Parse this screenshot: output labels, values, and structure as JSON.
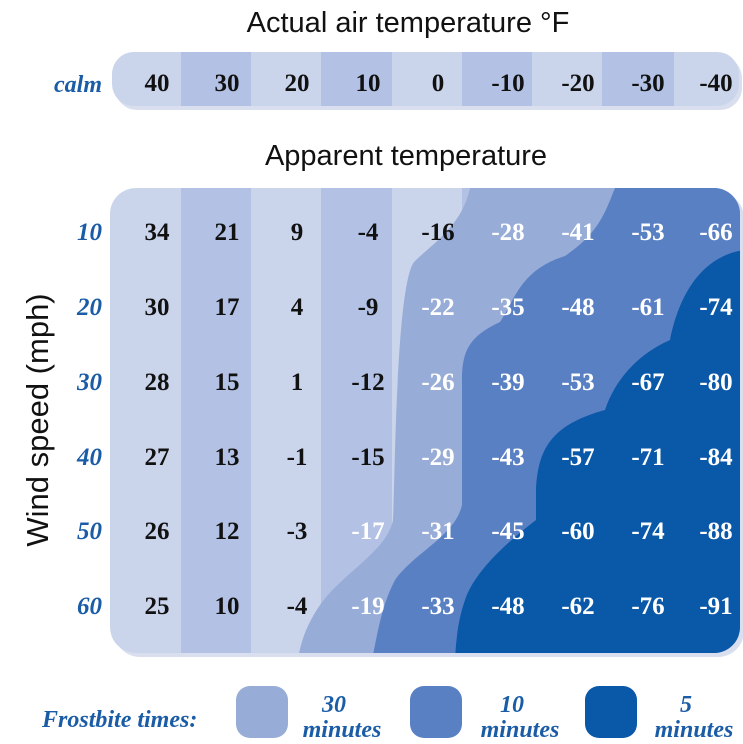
{
  "title": "Actual air temperature °F",
  "subtitle": "Apparent temperature",
  "ylabel": "Wind speed (mph)",
  "calm_label": "calm",
  "legend": {
    "title": "Frostbite times:",
    "items": [
      {
        "number": "30",
        "unit": "minutes",
        "color": "#98acd8"
      },
      {
        "number": "10",
        "unit": "minutes",
        "color": "#5a80c4"
      },
      {
        "number": "5",
        "unit": "minutes",
        "color": "#0a58a8"
      }
    ]
  },
  "colors": {
    "light": "#cad5ec",
    "mid": "#b2c1e4",
    "band30": "#98acd8",
    "band10": "#5a80c4",
    "band5": "#0a58a8",
    "label_blue": "#1a5ca6"
  },
  "chart_data": {
    "type": "table",
    "title": "Actual air temperature °F",
    "subtitle": "Apparent temperature",
    "ylabel": "Wind speed (mph)",
    "columns": [
      40,
      30,
      20,
      10,
      0,
      -10,
      -20,
      -30,
      -40
    ],
    "calm": [
      40,
      30,
      20,
      10,
      0,
      -10,
      -20,
      -30,
      -40
    ],
    "wind_speeds": [
      10,
      20,
      30,
      40,
      50,
      60
    ],
    "values": [
      [
        34,
        21,
        9,
        -4,
        -16,
        -28,
        -41,
        -53,
        -66
      ],
      [
        30,
        17,
        4,
        -9,
        -22,
        -35,
        -48,
        -61,
        -74
      ],
      [
        28,
        15,
        1,
        -12,
        -26,
        -39,
        -53,
        -67,
        -80
      ],
      [
        27,
        13,
        -1,
        -15,
        -29,
        -43,
        -57,
        -71,
        -84
      ],
      [
        26,
        12,
        -3,
        -17,
        -31,
        -45,
        -60,
        -74,
        -88
      ],
      [
        25,
        10,
        -4,
        -19,
        -33,
        -48,
        -62,
        -76,
        -91
      ]
    ],
    "frostbite_zones": [
      [
        0,
        0,
        0,
        0,
        0,
        30,
        30,
        10,
        10
      ],
      [
        0,
        0,
        0,
        0,
        30,
        30,
        10,
        10,
        5
      ],
      [
        0,
        0,
        0,
        0,
        30,
        10,
        10,
        5,
        5
      ],
      [
        0,
        0,
        0,
        0,
        30,
        10,
        5,
        5,
        5
      ],
      [
        0,
        0,
        0,
        30,
        30,
        10,
        5,
        5,
        5
      ],
      [
        0,
        0,
        0,
        30,
        10,
        5,
        5,
        5,
        5
      ]
    ]
  }
}
